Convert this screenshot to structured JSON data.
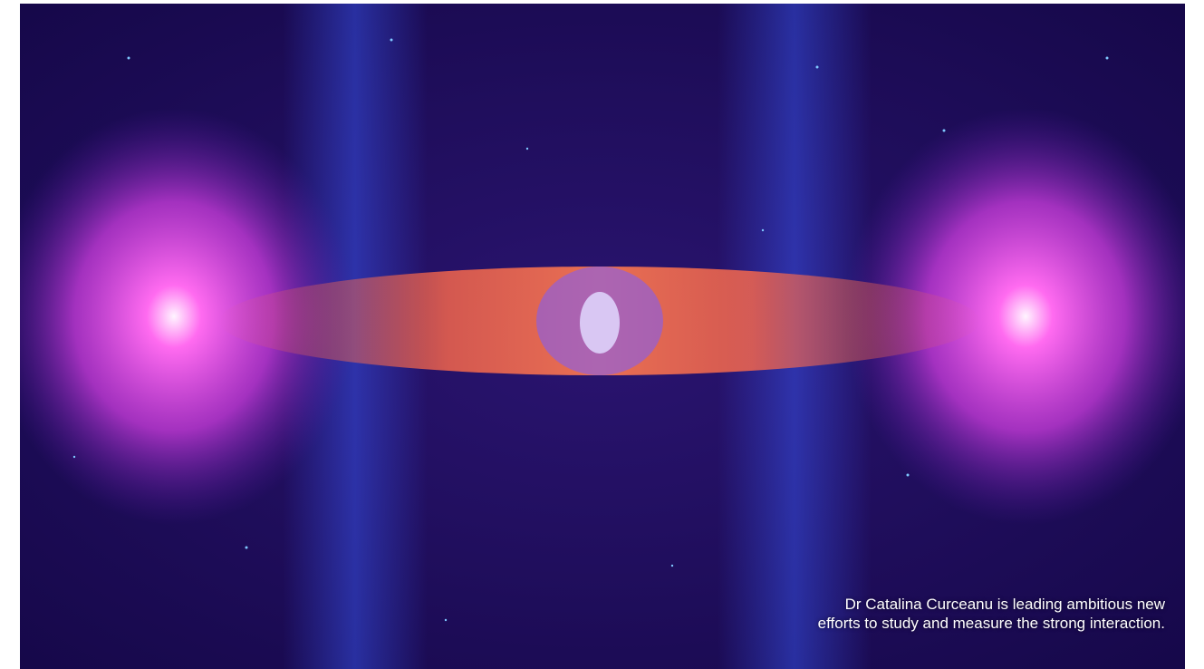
{
  "caption": "Dr Catalina Curceanu is leading ambitious new efforts to study and measure the strong interaction."
}
